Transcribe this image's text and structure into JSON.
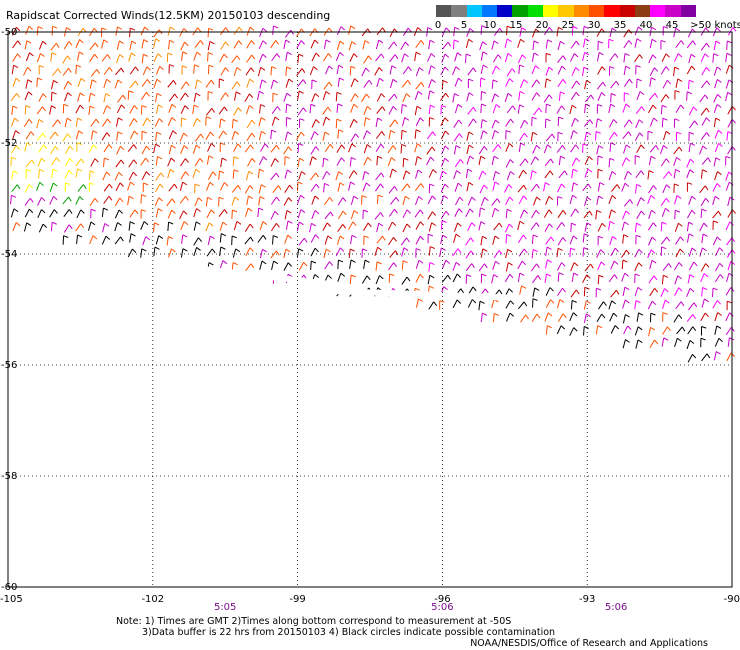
{
  "title": "Rapidscat Corrected Winds(12.5KM) 20150103 descending",
  "legend": {
    "units_label": ">50 knots",
    "ticks": [
      "0",
      "5",
      "10",
      "15",
      "20",
      "25",
      "30",
      "35",
      "40",
      "45"
    ],
    "colors": [
      "#555555",
      "#7f7f7f",
      "#00c8ff",
      "#0078ff",
      "#0000c8",
      "#00a000",
      "#00e000",
      "#ffff00",
      "#ffc800",
      "#ff8c00",
      "#ff5000",
      "#ff0000",
      "#c80000",
      "#8c3c14",
      "#ff00ff",
      "#c800c8",
      "#8000a0"
    ]
  },
  "notes": [
    "Note: 1) Times are GMT 2)Times along bottom correspond to measurement at -50S",
    "3)Data buffer is 22 hrs from 20150103 4) Black circles indicate possible contamination"
  ],
  "credit": "NOAA/NESDIS/Office of Research and Applications",
  "chart_data": {
    "type": "wind-barb",
    "x_axis": {
      "label": "",
      "range": [
        -105,
        -90
      ],
      "ticks": [
        "-105",
        "-102",
        "-99",
        "-96",
        "-93",
        "-90"
      ]
    },
    "y_axis": {
      "label": "",
      "range": [
        -60,
        -50
      ],
      "ticks": [
        "-50",
        "-52",
        "-54",
        "-56",
        "-58",
        "-60"
      ]
    },
    "grid": "dotted",
    "pass_times": [
      {
        "lon": -100.5,
        "time": "5:05"
      },
      {
        "lon": -96.0,
        "time": "5:06"
      },
      {
        "lon": -92.4,
        "time": "5:06"
      }
    ]
  }
}
